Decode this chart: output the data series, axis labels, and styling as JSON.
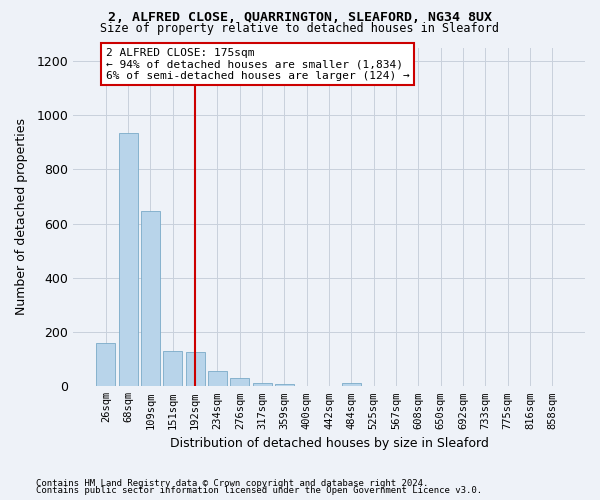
{
  "title1": "2, ALFRED CLOSE, QUARRINGTON, SLEAFORD, NG34 8UX",
  "title2": "Size of property relative to detached houses in Sleaford",
  "xlabel": "Distribution of detached houses by size in Sleaford",
  "ylabel": "Number of detached properties",
  "footnote1": "Contains HM Land Registry data © Crown copyright and database right 2024.",
  "footnote2": "Contains public sector information licensed under the Open Government Licence v3.0.",
  "annotation_line1": "2 ALFRED CLOSE: 175sqm",
  "annotation_line2": "← 94% of detached houses are smaller (1,834)",
  "annotation_line3": "6% of semi-detached houses are larger (124) →",
  "bar_color": "#b8d4ea",
  "bar_edge_color": "#7aaac8",
  "categories": [
    "26sqm",
    "68sqm",
    "109sqm",
    "151sqm",
    "192sqm",
    "234sqm",
    "276sqm",
    "317sqm",
    "359sqm",
    "400sqm",
    "442sqm",
    "484sqm",
    "525sqm",
    "567sqm",
    "608sqm",
    "650sqm",
    "692sqm",
    "733sqm",
    "775sqm",
    "816sqm",
    "858sqm"
  ],
  "values": [
    160,
    935,
    648,
    130,
    128,
    57,
    30,
    14,
    10,
    0,
    0,
    12,
    0,
    0,
    0,
    0,
    0,
    0,
    0,
    0,
    0
  ],
  "ylim": [
    0,
    1250
  ],
  "yticks": [
    0,
    200,
    400,
    600,
    800,
    1000,
    1200
  ],
  "property_bin_index": 4,
  "annotation_box_color": "white",
  "annotation_box_edge": "#cc0000",
  "background_color": "#eef2f8",
  "grid_color": "#c8d0dc",
  "vline_color": "#cc0000",
  "tick_fontsize": 7.5,
  "ylabel_fontsize": 9,
  "xlabel_fontsize": 9
}
